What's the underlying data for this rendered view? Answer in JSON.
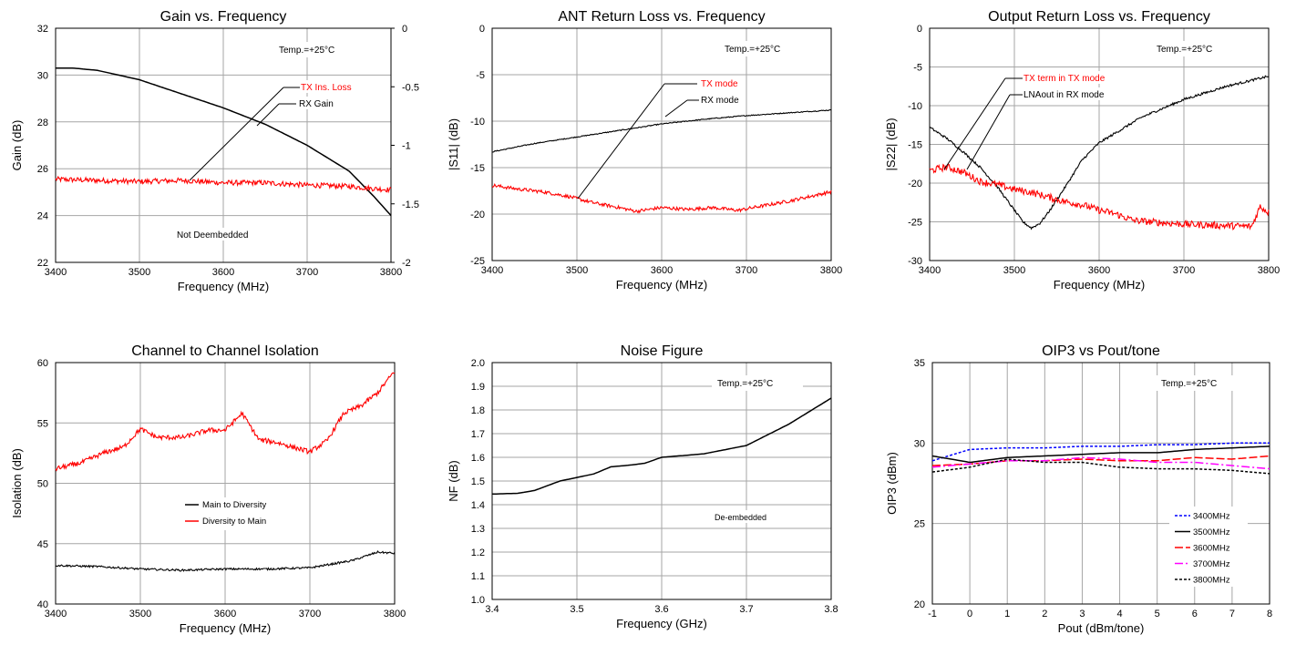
{
  "colors": {
    "red": "#ff0000",
    "black": "#000000",
    "blue": "#0000ff",
    "magenta": "#ff00ff",
    "grid": "#a6a6a6"
  },
  "chart_data": [
    {
      "type": "line",
      "title": "Gain vs. Frequency",
      "xlabel": "Frequency (MHz)",
      "ylabel": "Gain (dB)",
      "xlim": [
        3400,
        3800
      ],
      "ylim": [
        22,
        32
      ],
      "xticks": [
        "3400",
        "3500",
        "3600",
        "3700",
        "3800"
      ],
      "yticks": [
        "22",
        "24",
        "26",
        "28",
        "30",
        "32"
      ],
      "y2lim": [
        -2,
        0
      ],
      "y2ticks": [
        "-2",
        "-1.5",
        "-1",
        "-0.5",
        "0"
      ],
      "grid": true,
      "annotations": [
        "Temp.=+25°C",
        "Not Deembedded"
      ],
      "series": [
        {
          "name": "RX Gain",
          "axis": "left",
          "color": "#000000",
          "noise": 0.0,
          "x": [
            3400,
            3420,
            3450,
            3500,
            3550,
            3600,
            3650,
            3700,
            3750,
            3780,
            3800
          ],
          "y": [
            30.3,
            30.3,
            30.2,
            29.8,
            29.2,
            28.6,
            27.9,
            27.0,
            25.9,
            24.8,
            24.0
          ]
        },
        {
          "name": "TX Ins. Loss",
          "axis": "right",
          "color": "#ff0000",
          "noise": 0.022,
          "x": [
            3400,
            3450,
            3500,
            3550,
            3600,
            3650,
            3700,
            3750,
            3780,
            3800
          ],
          "y": [
            -1.29,
            -1.3,
            -1.31,
            -1.3,
            -1.32,
            -1.32,
            -1.34,
            -1.35,
            -1.37,
            -1.38
          ]
        }
      ]
    },
    {
      "type": "line",
      "title": "ANT Return Loss vs. Frequency",
      "xlabel": "Frequency (MHz)",
      "ylabel": "|S11| (dB)",
      "xlim": [
        3400,
        3800
      ],
      "ylim": [
        -25,
        0
      ],
      "xticks": [
        "3400",
        "3500",
        "3600",
        "3700",
        "3800"
      ],
      "yticks": [
        "-25",
        "-20",
        "-15",
        "-10",
        "-5",
        "0"
      ],
      "grid": true,
      "annotations": [
        "Temp.=+25°C"
      ],
      "series": [
        {
          "name": "RX mode",
          "axis": "left",
          "color": "#000000",
          "noise": 0.05,
          "x": [
            3400,
            3450,
            3500,
            3550,
            3600,
            3650,
            3700,
            3750,
            3800
          ],
          "y": [
            -13.3,
            -12.4,
            -11.7,
            -11.0,
            -10.3,
            -9.8,
            -9.4,
            -9.1,
            -8.8
          ]
        },
        {
          "name": "TX mode",
          "axis": "left",
          "color": "#ff0000",
          "noise": 0.18,
          "x": [
            3400,
            3430,
            3460,
            3490,
            3520,
            3550,
            3570,
            3600,
            3630,
            3660,
            3690,
            3720,
            3750,
            3780,
            3800
          ],
          "y": [
            -16.9,
            -17.3,
            -17.6,
            -18.1,
            -18.8,
            -19.3,
            -19.7,
            -19.3,
            -19.5,
            -19.3,
            -19.6,
            -19.1,
            -18.6,
            -18.0,
            -17.6
          ]
        }
      ]
    },
    {
      "type": "line",
      "title": "Output Return Loss vs. Frequency",
      "xlabel": "Frequency (MHz)",
      "ylabel": "|S22| (dB)",
      "xlim": [
        3400,
        3800
      ],
      "ylim": [
        -30,
        0
      ],
      "xticks": [
        "3400",
        "3500",
        "3600",
        "3700",
        "3800"
      ],
      "yticks": [
        "-30",
        "-25",
        "-20",
        "-15",
        "-10",
        "-5",
        "0"
      ],
      "grid": true,
      "annotations": [
        "Temp.=+25°C"
      ],
      "series": [
        {
          "name": "LNAout in RX mode",
          "axis": "left",
          "color": "#000000",
          "noise": 0.15,
          "x": [
            3400,
            3420,
            3440,
            3460,
            3480,
            3500,
            3510,
            3520,
            3530,
            3540,
            3560,
            3580,
            3600,
            3650,
            3700,
            3750,
            3800
          ],
          "y": [
            -12.8,
            -14.2,
            -16.0,
            -18.0,
            -20.5,
            -23.5,
            -25.0,
            -25.8,
            -25.2,
            -23.8,
            -20.5,
            -17.0,
            -14.8,
            -11.5,
            -9.2,
            -7.5,
            -6.2
          ]
        },
        {
          "name": "TX term in TX mode",
          "axis": "left",
          "color": "#ff0000",
          "noise": 0.45,
          "x": [
            3400,
            3420,
            3440,
            3460,
            3480,
            3500,
            3520,
            3540,
            3560,
            3580,
            3600,
            3620,
            3640,
            3660,
            3700,
            3750,
            3780,
            3790,
            3800
          ],
          "y": [
            -18.4,
            -17.9,
            -18.6,
            -19.8,
            -20.2,
            -20.8,
            -21.2,
            -21.8,
            -22.4,
            -22.8,
            -23.5,
            -24.0,
            -24.8,
            -25.0,
            -25.3,
            -25.5,
            -25.6,
            -23.0,
            -23.8
          ]
        }
      ]
    },
    {
      "type": "line",
      "title": "Channel to Channel Isolation",
      "xlabel": "Frequency (MHz)",
      "ylabel": "Isolation (dB)",
      "xlim": [
        3400,
        3800
      ],
      "ylim": [
        40,
        60
      ],
      "xticks": [
        "3400",
        "3500",
        "3600",
        "3700",
        "3800"
      ],
      "yticks": [
        "40",
        "45",
        "50",
        "55",
        "60"
      ],
      "grid": true,
      "annotations": [],
      "series": [
        {
          "name": "Main to Diversity",
          "axis": "left",
          "color": "#000000",
          "noise": 0.08,
          "x": [
            3400,
            3450,
            3500,
            3550,
            3600,
            3650,
            3700,
            3750,
            3780,
            3800
          ],
          "y": [
            43.2,
            43.1,
            42.9,
            42.8,
            42.9,
            42.9,
            43.0,
            43.6,
            44.3,
            44.2
          ]
        },
        {
          "name": "Diversity to Main",
          "axis": "left",
          "color": "#ff0000",
          "noise": 0.2,
          "x": [
            3400,
            3430,
            3460,
            3480,
            3500,
            3520,
            3550,
            3580,
            3600,
            3620,
            3640,
            3660,
            3700,
            3720,
            3740,
            3760,
            3780,
            3800
          ],
          "y": [
            51.2,
            51.7,
            52.6,
            53.0,
            54.5,
            53.8,
            53.8,
            54.4,
            54.4,
            55.8,
            53.6,
            53.4,
            52.6,
            53.5,
            55.8,
            56.4,
            57.5,
            59.3
          ]
        }
      ]
    },
    {
      "type": "line",
      "title": "Noise Figure",
      "xlabel": "Frequency (GHz)",
      "ylabel": "NF (dB)",
      "xlim": [
        3.4,
        3.8
      ],
      "ylim": [
        1.0,
        2.0
      ],
      "xticks": [
        "3.4",
        "3.5",
        "3.6",
        "3.7",
        "3.8"
      ],
      "yticks": [
        "1.0",
        "1.1",
        "1.2",
        "1.3",
        "1.4",
        "1.5",
        "1.6",
        "1.7",
        "1.8",
        "1.9",
        "2.0"
      ],
      "grid": true,
      "annotations": [
        "Temp.=+25°C",
        "De-embedded"
      ],
      "series": [
        {
          "name": "",
          "axis": "left",
          "color": "#000000",
          "noise": 0.0,
          "x": [
            3.4,
            3.43,
            3.45,
            3.48,
            3.5,
            3.52,
            3.54,
            3.56,
            3.58,
            3.6,
            3.65,
            3.7,
            3.75,
            3.8
          ],
          "y": [
            1.445,
            1.448,
            1.46,
            1.5,
            1.515,
            1.53,
            1.56,
            1.566,
            1.575,
            1.6,
            1.615,
            1.65,
            1.74,
            1.85
          ]
        }
      ]
    },
    {
      "type": "line",
      "title": "OIP3 vs Pout/tone",
      "xlabel": "Pout (dBm/tone)",
      "ylabel": "OIP3 (dBm)",
      "xlim": [
        -1,
        8
      ],
      "ylim": [
        20,
        35
      ],
      "xticks": [
        "-1",
        "0",
        "1",
        "2",
        "3",
        "4",
        "5",
        "6",
        "7",
        "8"
      ],
      "yticks": [
        "20",
        "25",
        "30",
        "35"
      ],
      "grid": true,
      "annotations": [
        "Temp.=+25°C"
      ],
      "series": [
        {
          "name": "3400MHz",
          "axis": "left",
          "color": "#0000ff",
          "dash": "3,2",
          "noise": 0.0,
          "x": [
            -1,
            0,
            1,
            2,
            3,
            4,
            5,
            6,
            7,
            8
          ],
          "y": [
            28.9,
            29.6,
            29.7,
            29.7,
            29.8,
            29.8,
            29.9,
            29.9,
            30.0,
            30.0
          ]
        },
        {
          "name": "3500MHz",
          "axis": "left",
          "color": "#000000",
          "dash": "",
          "noise": 0.0,
          "x": [
            -1,
            0,
            1,
            2,
            3,
            4,
            5,
            6,
            7,
            8
          ],
          "y": [
            29.2,
            28.8,
            29.1,
            29.2,
            29.3,
            29.4,
            29.4,
            29.6,
            29.7,
            29.8
          ]
        },
        {
          "name": "3600MHz",
          "axis": "left",
          "color": "#ff0000",
          "dash": "9,3",
          "noise": 0.0,
          "x": [
            -1,
            0,
            1,
            2,
            3,
            4,
            5,
            6,
            7,
            8
          ],
          "y": [
            28.6,
            28.7,
            28.9,
            28.9,
            29.0,
            28.9,
            28.9,
            29.1,
            29.0,
            29.2
          ]
        },
        {
          "name": "3700MHz",
          "axis": "left",
          "color": "#ff00ff",
          "dash": "9,3,2,3",
          "noise": 0.0,
          "x": [
            -1,
            0,
            1,
            2,
            3,
            4,
            5,
            6,
            7,
            8
          ],
          "y": [
            28.5,
            28.7,
            28.9,
            28.9,
            29.1,
            29.0,
            28.8,
            28.8,
            28.6,
            28.4
          ]
        },
        {
          "name": "3800MHz",
          "axis": "left",
          "color": "#000000",
          "dash": "3,2",
          "noise": 0.0,
          "x": [
            -1,
            0,
            1,
            2,
            3,
            4,
            5,
            6,
            7,
            8
          ],
          "y": [
            28.2,
            28.5,
            29.0,
            28.8,
            28.8,
            28.5,
            28.4,
            28.4,
            28.3,
            28.1
          ]
        }
      ]
    }
  ],
  "labels": {
    "gain_temp": "Temp.=+25°C",
    "gain_note": "Not Deembedded",
    "gain_tx": "TX Ins. Loss",
    "gain_rx": "RX Gain",
    "s11_temp": "Temp.=+25°C",
    "s11_tx": "TX mode",
    "s11_rx": "RX mode",
    "s22_temp": "Temp.=+25°C",
    "s22_tx": "TX term in TX mode",
    "s22_rx": "LNAout in RX mode",
    "iso_leg1": "Main to Diversity",
    "iso_leg2": "Diversity to Main",
    "nf_temp": "Temp.=+25°C",
    "nf_note": "De-embedded",
    "oip3_temp": "Temp.=+25°C",
    "oip3_leg": [
      "3400MHz",
      "3500MHz",
      "3600MHz",
      "3700MHz",
      "3800MHz"
    ]
  }
}
